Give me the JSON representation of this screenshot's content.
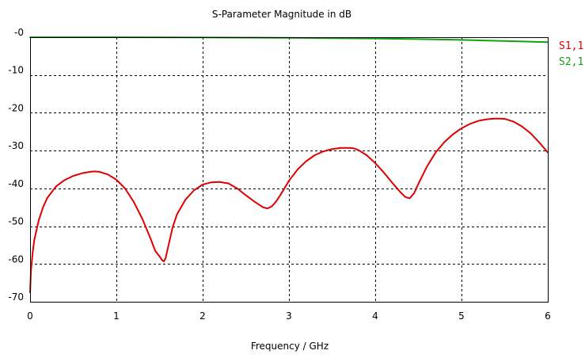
{
  "chart_data": {
    "type": "line",
    "title": "S-Parameter Magnitude in dB",
    "xlabel": "Frequency / GHz",
    "ylabel": "",
    "xlim": [
      0,
      6
    ],
    "ylim": [
      -70,
      0
    ],
    "x_ticks": [
      0,
      1,
      2,
      3,
      4,
      5,
      6
    ],
    "x_tick_labels": [
      "0",
      "1",
      "2",
      "3",
      "4",
      "5",
      "6"
    ],
    "y_ticks": [
      0,
      -10,
      -20,
      -30,
      -40,
      -50,
      -60,
      -70
    ],
    "y_tick_labels": [
      "-0",
      "-10",
      "-20",
      "-30",
      "-40",
      "-50",
      "-60",
      "-70"
    ],
    "grid": true,
    "legend_position": "right",
    "series": [
      {
        "name": "S1,1",
        "color": "#e00000",
        "x": [
          0,
          0.01,
          0.03,
          0.05,
          0.1,
          0.15,
          0.2,
          0.3,
          0.4,
          0.5,
          0.6,
          0.7,
          0.75,
          0.8,
          0.9,
          1.0,
          1.1,
          1.2,
          1.3,
          1.4,
          1.45,
          1.5,
          1.53,
          1.55,
          1.57,
          1.6,
          1.65,
          1.7,
          1.8,
          1.9,
          2.0,
          2.1,
          2.2,
          2.3,
          2.4,
          2.5,
          2.6,
          2.7,
          2.75,
          2.8,
          2.85,
          2.9,
          3.0,
          3.1,
          3.2,
          3.3,
          3.4,
          3.5,
          3.6,
          3.7,
          3.75,
          3.8,
          3.9,
          4.0,
          4.1,
          4.2,
          4.3,
          4.35,
          4.4,
          4.45,
          4.5,
          4.6,
          4.7,
          4.8,
          4.9,
          5.0,
          5.1,
          5.2,
          5.3,
          5.4,
          5.5,
          5.6,
          5.7,
          5.8,
          5.9,
          6.0
        ],
        "y": [
          -67.5,
          -62,
          -57,
          -53.5,
          -48.5,
          -45,
          -42.5,
          -39.5,
          -37.8,
          -36.7,
          -36,
          -35.6,
          -35.5,
          -35.6,
          -36.3,
          -37.7,
          -40,
          -43.5,
          -48,
          -53.5,
          -56.5,
          -58,
          -59,
          -59.3,
          -58.5,
          -55.5,
          -50.5,
          -47,
          -43,
          -40.5,
          -39,
          -38.4,
          -38.3,
          -38.7,
          -40,
          -41.8,
          -43.5,
          -45,
          -45.3,
          -44.8,
          -43.5,
          -41.8,
          -38,
          -35,
          -32.8,
          -31.2,
          -30.2,
          -29.6,
          -29.3,
          -29.3,
          -29.4,
          -29.8,
          -31.2,
          -33.3,
          -35.8,
          -38.6,
          -41.2,
          -42.3,
          -42.6,
          -41.3,
          -38.8,
          -34.2,
          -30.5,
          -27.8,
          -25.7,
          -24.1,
          -22.9,
          -22.1,
          -21.7,
          -21.5,
          -21.6,
          -22.3,
          -23.6,
          -25.4,
          -27.8,
          -30.5
        ]
      },
      {
        "name": "S2,1",
        "color": "#14a014",
        "x": [
          0,
          1,
          2,
          2.5,
          3,
          3.5,
          4,
          4.5,
          5,
          5.5,
          6
        ],
        "y": [
          0,
          0,
          -0.05,
          -0.1,
          -0.15,
          -0.25,
          -0.35,
          -0.5,
          -0.7,
          -1.0,
          -1.3
        ]
      }
    ]
  }
}
